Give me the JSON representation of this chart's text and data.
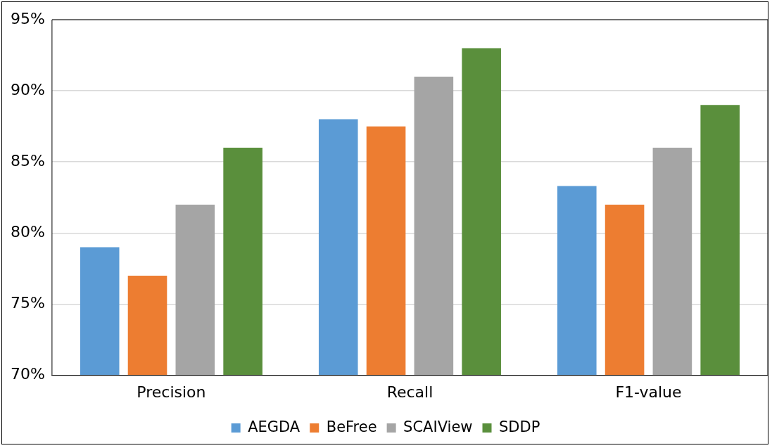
{
  "chart_data": {
    "type": "bar",
    "categories": [
      "Precision",
      "Recall",
      "F1-value"
    ],
    "series": [
      {
        "name": "AEGDA",
        "color": "#5b9bd5",
        "values": [
          79,
          88,
          83.3
        ]
      },
      {
        "name": "BeFree",
        "color": "#ed7d31",
        "values": [
          77,
          87.5,
          82
        ]
      },
      {
        "name": "SCAIView",
        "color": "#a5a5a5",
        "values": [
          82,
          91,
          86
        ]
      },
      {
        "name": "SDDP",
        "color": "#5a8f3c",
        "values": [
          86,
          93,
          89
        ]
      }
    ],
    "ylim": [
      70,
      95
    ],
    "yticks": [
      {
        "value": 70,
        "label": "70%"
      },
      {
        "value": 75,
        "label": "75%"
      },
      {
        "value": 80,
        "label": "80%"
      },
      {
        "value": 85,
        "label": "85%"
      },
      {
        "value": 90,
        "label": "90%"
      },
      {
        "value": 95,
        "label": "95%"
      }
    ],
    "grid": "y",
    "legend": "bottom"
  }
}
